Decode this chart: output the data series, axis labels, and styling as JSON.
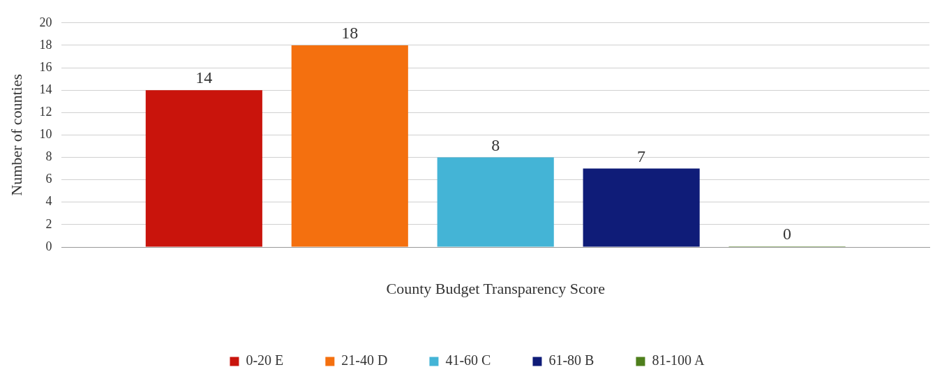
{
  "chart_data": {
    "type": "bar",
    "xlabel": "County Budget Transparency Score",
    "ylabel": "Number of counties",
    "categories": [
      null
    ],
    "series": [
      {
        "name": "0-20 E",
        "color": "#c9140c",
        "values": [
          14
        ]
      },
      {
        "name": "21-40 D",
        "color": "#f4700f",
        "values": [
          18
        ]
      },
      {
        "name": "41-60 C",
        "color": "#44b4d6",
        "values": [
          8
        ]
      },
      {
        "name": "61-80 B",
        "color": "#0f1c78",
        "values": [
          7
        ]
      },
      {
        "name": "81-100 A",
        "color": "#4e7f1c",
        "values": [
          0
        ]
      }
    ],
    "ylim": [
      0,
      20
    ],
    "yticks": [
      0,
      2,
      4,
      6,
      8,
      10,
      12,
      14,
      16,
      18,
      20
    ],
    "grid": "y",
    "legend": "bottom",
    "data_labels": true
  }
}
